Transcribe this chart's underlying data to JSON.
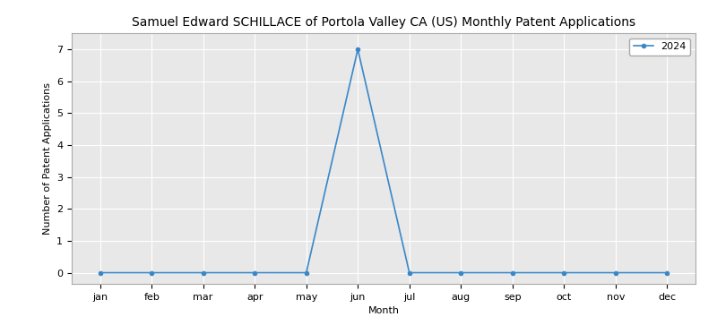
{
  "title": "Samuel Edward SCHILLACE of Portola Valley CA (US) Monthly Patent Applications",
  "xlabel": "Month",
  "ylabel": "Number of Patent Applications",
  "months": [
    "jan",
    "feb",
    "mar",
    "apr",
    "may",
    "jun",
    "jul",
    "aug",
    "sep",
    "oct",
    "nov",
    "dec"
  ],
  "values": [
    0,
    0,
    0,
    0,
    0,
    7,
    0,
    0,
    0,
    0,
    0,
    0
  ],
  "line_color": "#3a87c8",
  "marker": "o",
  "markersize": 3,
  "linewidth": 1.2,
  "legend_label": "2024",
  "ylim": [
    -0.35,
    7.5
  ],
  "title_fontsize": 10,
  "label_fontsize": 8,
  "tick_fontsize": 8,
  "legend_fontsize": 8,
  "background_color": "#ffffff",
  "axes_facecolor": "#e8e8e8",
  "grid_color": "#ffffff",
  "spine_color": "#aaaaaa"
}
